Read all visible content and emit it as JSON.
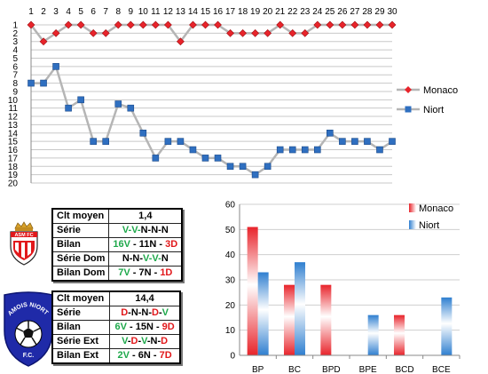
{
  "line_chart": {
    "type": "line",
    "x_ticks": [
      1,
      2,
      3,
      4,
      5,
      6,
      7,
      8,
      9,
      10,
      11,
      12,
      13,
      14,
      15,
      16,
      17,
      18,
      19,
      20,
      21,
      22,
      23,
      24,
      25,
      26,
      27,
      28,
      29,
      30
    ],
    "y_ticks": [
      1,
      2,
      3,
      4,
      5,
      6,
      7,
      8,
      9,
      10,
      11,
      12,
      13,
      14,
      15,
      16,
      17,
      18,
      19,
      20
    ],
    "y_range": [
      1,
      20
    ],
    "y_inverted": true,
    "grid": true,
    "legend_position": "right",
    "series": [
      {
        "name": "Monaco",
        "color": "#e8242b",
        "marker": "diamond",
        "values": [
          1,
          3,
          2,
          1,
          1,
          2,
          2,
          1,
          1,
          1,
          1,
          1,
          3,
          1,
          1,
          1,
          2,
          2,
          2,
          2,
          1,
          2,
          2,
          1,
          1,
          1,
          1,
          1,
          1,
          1
        ]
      },
      {
        "name": "Niort",
        "color": "#2f6fc0",
        "marker": "square",
        "values": [
          8,
          8,
          6,
          11,
          10,
          15,
          15,
          10.5,
          11,
          14,
          17,
          15,
          15,
          16,
          17,
          17,
          18,
          18,
          19,
          18,
          16,
          16,
          16,
          16,
          14,
          15,
          15,
          15,
          16,
          15
        ]
      }
    ]
  },
  "bar_chart": {
    "type": "bar",
    "categories": [
      "BP",
      "BC",
      "BPD",
      "BPE",
      "BCD",
      "BCE"
    ],
    "y_ticks": [
      0,
      10,
      20,
      30,
      40,
      50,
      60
    ],
    "ylim": [
      0,
      60
    ],
    "legend_position": "top-right",
    "series": [
      {
        "name": "Monaco",
        "color": "#e8242b",
        "values": [
          51,
          28,
          28,
          0,
          16,
          0
        ]
      },
      {
        "name": "Niort",
        "color": "#2f7fd0",
        "values": [
          33,
          37,
          0,
          16,
          0,
          23
        ]
      }
    ]
  },
  "monaco_table": {
    "rows": [
      {
        "label": "Clt moyen",
        "value": [
          {
            "t": "1,4",
            "c": "k"
          }
        ]
      },
      {
        "label": "Série",
        "value": [
          {
            "t": "V-V-",
            "c": "g"
          },
          {
            "t": "N-N-N",
            "c": "k"
          }
        ]
      },
      {
        "label": "Bilan",
        "value": [
          {
            "t": "16V",
            "c": "g"
          },
          {
            "t": " - 11N - ",
            "c": "k"
          },
          {
            "t": "3D",
            "c": "r"
          }
        ]
      },
      {
        "label": "Série Dom",
        "value": [
          {
            "t": "N-N-",
            "c": "k"
          },
          {
            "t": "V-V-",
            "c": "g"
          },
          {
            "t": "N",
            "c": "k"
          }
        ]
      },
      {
        "label": "Bilan Dom",
        "value": [
          {
            "t": "7V",
            "c": "g"
          },
          {
            "t": " - 7N - ",
            "c": "k"
          },
          {
            "t": "1D",
            "c": "r"
          }
        ]
      }
    ]
  },
  "niort_table": {
    "rows": [
      {
        "label": "Clt moyen",
        "value": [
          {
            "t": "14,4",
            "c": "k"
          }
        ]
      },
      {
        "label": "Série",
        "value": [
          {
            "t": "D",
            "c": "r"
          },
          {
            "t": "-N-N-",
            "c": "k"
          },
          {
            "t": "D",
            "c": "r"
          },
          {
            "t": "-",
            "c": "k"
          },
          {
            "t": "V",
            "c": "g"
          }
        ]
      },
      {
        "label": "Bilan",
        "value": [
          {
            "t": "6V",
            "c": "g"
          },
          {
            "t": " - 15N - ",
            "c": "k"
          },
          {
            "t": "9D",
            "c": "r"
          }
        ]
      },
      {
        "label": "Série Ext",
        "value": [
          {
            "t": "V",
            "c": "g"
          },
          {
            "t": "-",
            "c": "k"
          },
          {
            "t": "D",
            "c": "r"
          },
          {
            "t": "-",
            "c": "k"
          },
          {
            "t": "V",
            "c": "g"
          },
          {
            "t": "-N-",
            "c": "k"
          },
          {
            "t": "D",
            "c": "r"
          }
        ]
      },
      {
        "label": "Bilan Ext",
        "value": [
          {
            "t": "2V",
            "c": "g"
          },
          {
            "t": " - 6N - ",
            "c": "k"
          },
          {
            "t": "7D",
            "c": "r"
          }
        ]
      }
    ]
  },
  "logos": {
    "monaco_text": "ASM FC",
    "niort_top_text": "CHAMOIS NIORTAIS",
    "niort_bottom_text": "F.C."
  }
}
